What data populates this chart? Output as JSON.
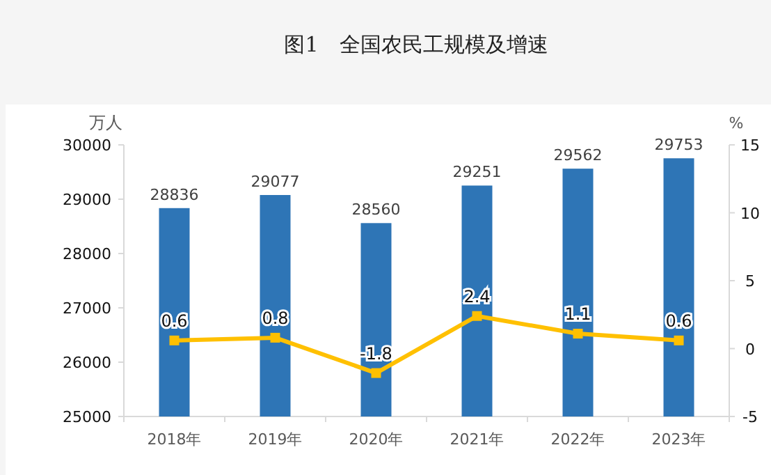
{
  "chart_data": {
    "type": "bar",
    "title": "图1　全国农民工规模及增速",
    "ylabel": "万人",
    "y2label": "%",
    "categories": [
      "2018年",
      "2019年",
      "2020年",
      "2021年",
      "2022年",
      "2023年"
    ],
    "series": [
      {
        "color": "#2e75b6",
        "values": [
          28836,
          29077,
          28560,
          29251,
          29562,
          29753
        ]
      },
      {
        "type": "line",
        "axis": "y2",
        "color": "#ffc000",
        "marker": "square",
        "values": [
          0.6,
          0.8,
          -1.8,
          2.4,
          1.1,
          0.6
        ]
      }
    ],
    "ylim": [
      25000,
      30000
    ],
    "yticks": [
      25000,
      26000,
      27000,
      28000,
      29000,
      30000
    ],
    "y2lim": [
      -5,
      15
    ],
    "y2ticks": [
      -5,
      0,
      5,
      10,
      15
    ],
    "data_labels": true,
    "grid": false
  }
}
